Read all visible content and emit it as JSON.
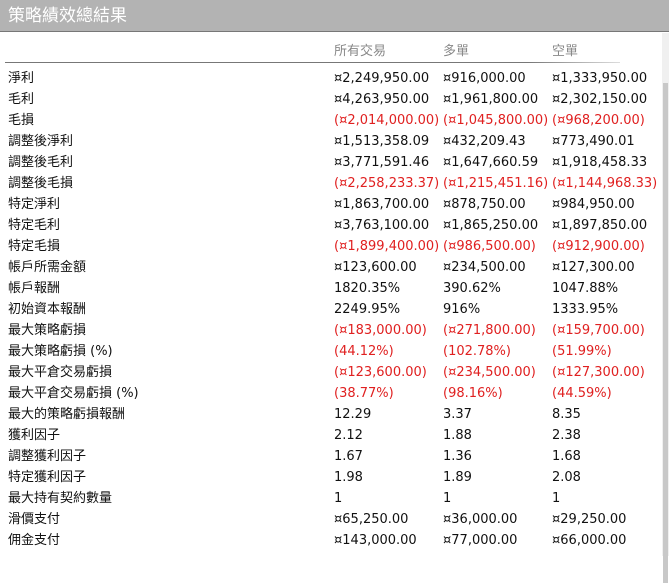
{
  "title": "策略績效總結果",
  "columns": [
    "所有交易",
    "多單",
    "空單"
  ],
  "rows": [
    {
      "label": "淨利",
      "values": [
        "¤2,249,950.00",
        "¤916,000.00",
        "¤1,333,950.00"
      ],
      "negative": false
    },
    {
      "label": "毛利",
      "values": [
        "¤4,263,950.00",
        "¤1,961,800.00",
        "¤2,302,150.00"
      ],
      "negative": false
    },
    {
      "label": "毛損",
      "values": [
        "(¤2,014,000.00)",
        "(¤1,045,800.00)",
        "(¤968,200.00)"
      ],
      "negative": true
    },
    {
      "label": "調整後淨利",
      "values": [
        "¤1,513,358.09",
        "¤432,209.43",
        "¤773,490.01"
      ],
      "negative": false
    },
    {
      "label": "調整後毛利",
      "values": [
        "¤3,771,591.46",
        "¤1,647,660.59",
        "¤1,918,458.33"
      ],
      "negative": false
    },
    {
      "label": "調整後毛損",
      "values": [
        "(¤2,258,233.37)",
        "(¤1,215,451.16)",
        "(¤1,144,968.33)"
      ],
      "negative": true
    },
    {
      "label": "特定淨利",
      "values": [
        "¤1,863,700.00",
        "¤878,750.00",
        "¤984,950.00"
      ],
      "negative": false
    },
    {
      "label": "特定毛利",
      "values": [
        "¤3,763,100.00",
        "¤1,865,250.00",
        "¤1,897,850.00"
      ],
      "negative": false
    },
    {
      "label": "特定毛損",
      "values": [
        "(¤1,899,400.00)",
        "(¤986,500.00)",
        "(¤912,900.00)"
      ],
      "negative": true
    },
    {
      "label": "帳戶所需金額",
      "values": [
        "¤123,600.00",
        "¤234,500.00",
        "¤127,300.00"
      ],
      "negative": false
    },
    {
      "label": "帳戶報酬",
      "values": [
        "1820.35%",
        "390.62%",
        "1047.88%"
      ],
      "negative": false
    },
    {
      "label": "初始資本報酬",
      "values": [
        "2249.95%",
        "916%",
        "1333.95%"
      ],
      "negative": false
    },
    {
      "label": "最大策略虧損",
      "values": [
        "(¤183,000.00)",
        "(¤271,800.00)",
        "(¤159,700.00)"
      ],
      "negative": true
    },
    {
      "label": "最大策略虧損 (%)",
      "values": [
        "(44.12%)",
        "(102.78%)",
        "(51.99%)"
      ],
      "negative": true
    },
    {
      "label": "最大平倉交易虧損",
      "values": [
        "(¤123,600.00)",
        "(¤234,500.00)",
        "(¤127,300.00)"
      ],
      "negative": true
    },
    {
      "label": "最大平倉交易虧損 (%)",
      "values": [
        "(38.77%)",
        "(98.16%)",
        "(44.59%)"
      ],
      "negative": true
    },
    {
      "label": "最大的策略虧損報酬",
      "values": [
        "12.29",
        "3.37",
        "8.35"
      ],
      "negative": false
    },
    {
      "label": "獲利因子",
      "values": [
        "2.12",
        "1.88",
        "2.38"
      ],
      "negative": false
    },
    {
      "label": "調整獲利因子",
      "values": [
        "1.67",
        "1.36",
        "1.68"
      ],
      "negative": false
    },
    {
      "label": "特定獲利因子",
      "values": [
        "1.98",
        "1.89",
        "2.08"
      ],
      "negative": false
    },
    {
      "label": "最大持有契約數量",
      "values": [
        "1",
        "1",
        "1"
      ],
      "negative": false
    },
    {
      "label": "滑價支付",
      "values": [
        "¤65,250.00",
        "¤36,000.00",
        "¤29,250.00"
      ],
      "negative": false
    },
    {
      "label": "佣金支付",
      "values": [
        "¤143,000.00",
        "¤77,000.00",
        "¤66,000.00"
      ],
      "negative": false
    }
  ],
  "colors": {
    "negative": "#e02020",
    "titlebar": "#b3b3b3"
  }
}
